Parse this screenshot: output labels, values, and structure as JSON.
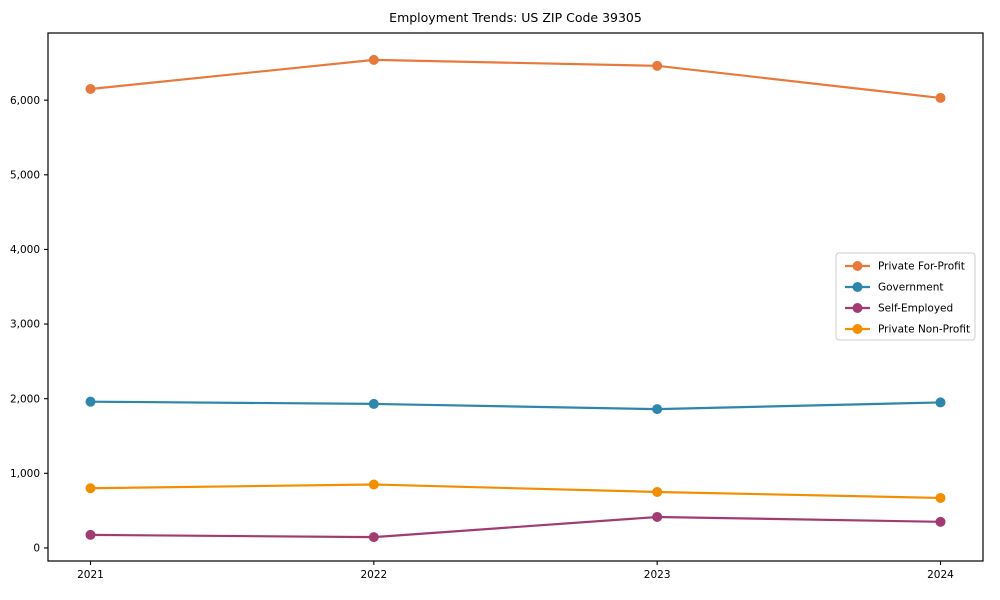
{
  "chart_data": {
    "type": "line",
    "title": "Employment Trends: US ZIP Code 39305",
    "xlabel": "",
    "ylabel": "",
    "x": [
      2021,
      2022,
      2023,
      2024
    ],
    "x_tick_labels": [
      "2021",
      "2022",
      "2023",
      "2024"
    ],
    "series": [
      {
        "name": "Private For-Profit",
        "color": "#E8793D",
        "values": [
          6150,
          6540,
          6460,
          6030
        ]
      },
      {
        "name": "Government",
        "color": "#2E86AB",
        "values": [
          1960,
          1930,
          1860,
          1950
        ]
      },
      {
        "name": "Self-Employed",
        "color": "#A23B72",
        "values": [
          175,
          145,
          415,
          350
        ]
      },
      {
        "name": "Private Non-Profit",
        "color": "#F18F01",
        "values": [
          800,
          850,
          750,
          670
        ]
      }
    ],
    "xlim": [
      2020.85,
      2024.15
    ],
    "ylim": [
      -175,
      6900
    ],
    "yticks": [
      0,
      1000,
      2000,
      3000,
      4000,
      5000,
      6000
    ],
    "ytick_label_format": "comma",
    "grid": false,
    "legend_position": "center-right",
    "marker": "circle",
    "axis_color": "#000000"
  }
}
